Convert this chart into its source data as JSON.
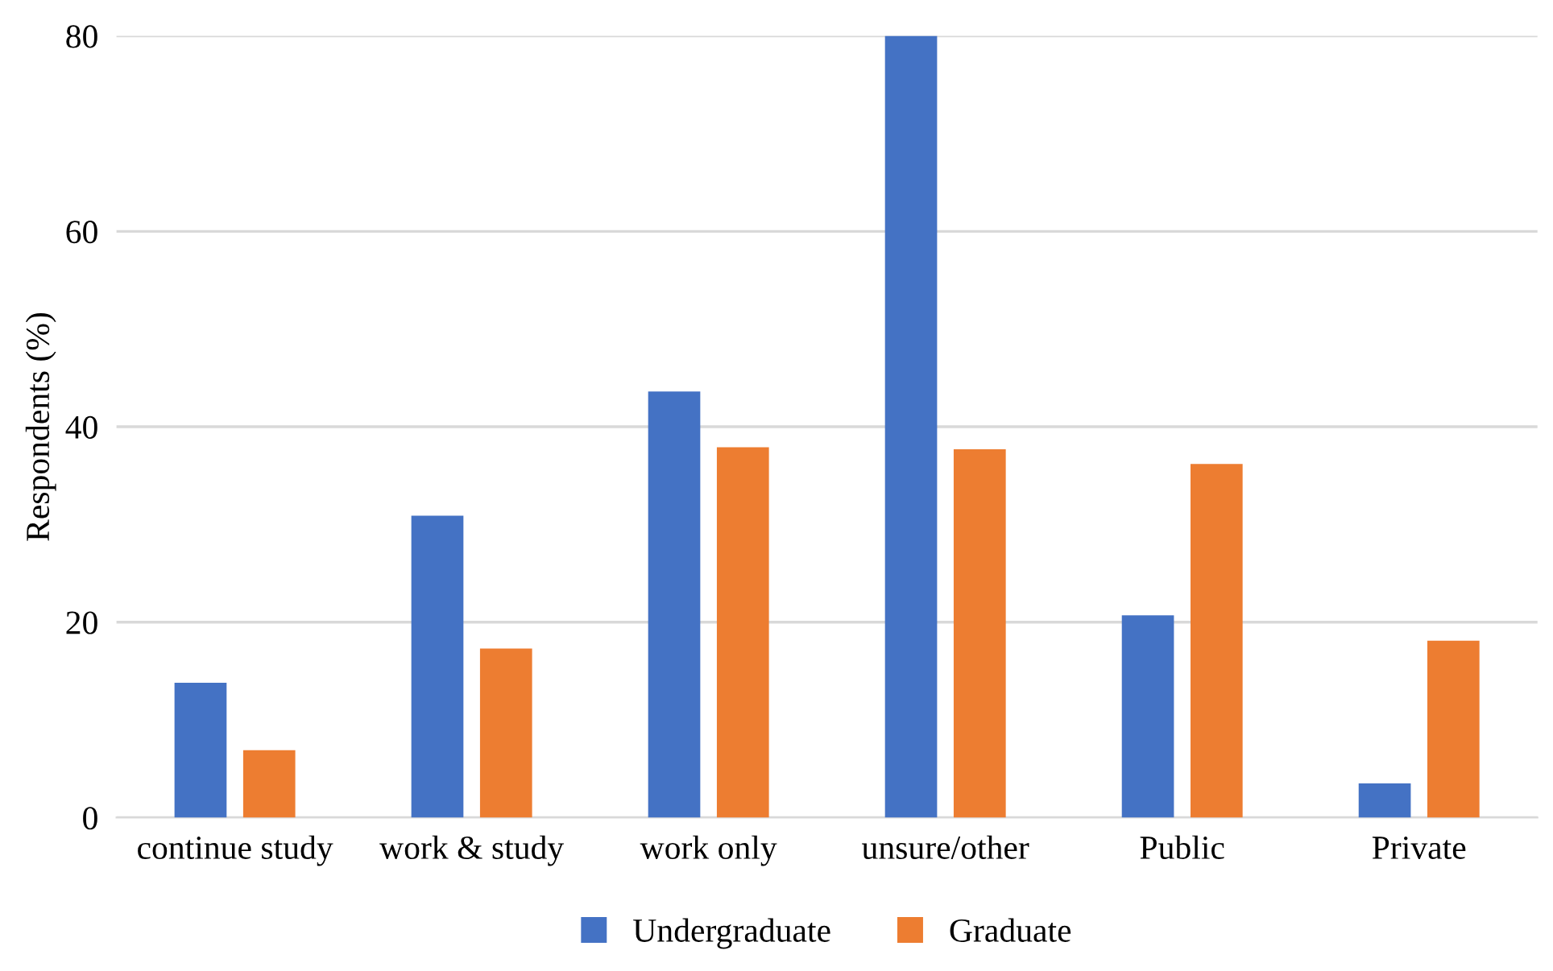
{
  "chart_data": {
    "type": "bar",
    "ylabel": "Respondents (%)",
    "categories": [
      "continue study",
      "work & study",
      "work only",
      "unsure/other",
      "Public",
      "Private"
    ],
    "series": [
      {
        "name": "Undergraduate",
        "color": "#4472c4",
        "values": [
          13.8,
          30.9,
          43.6,
          80,
          20.7,
          3.5
        ]
      },
      {
        "name": "Graduate",
        "color": "#ed7d31",
        "values": [
          6.9,
          17.3,
          37.9,
          37.7,
          36.2,
          18.1
        ]
      }
    ],
    "ylim": [
      0,
      80
    ],
    "yticks": [
      0,
      20,
      40,
      60,
      80
    ],
    "grid": "y",
    "legend": "bottom"
  }
}
